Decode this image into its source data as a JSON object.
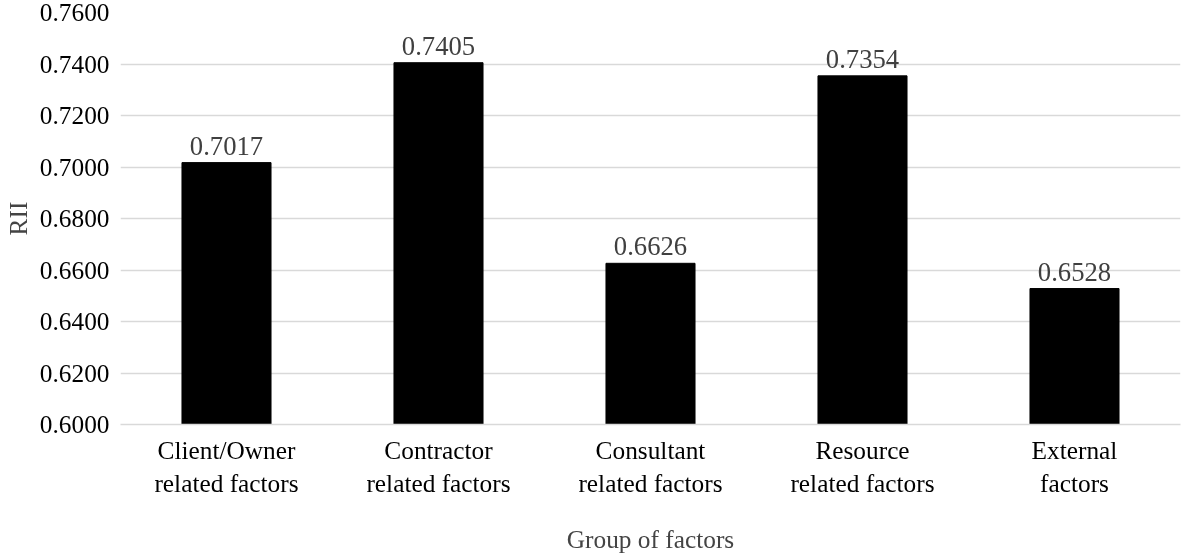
{
  "chart_data": {
    "type": "bar",
    "categories": [
      "Client/Owner\nrelated factors",
      "Contractor\nrelated factors",
      "Consultant\nrelated factors",
      "Resource\nrelated factors",
      "External\nfactors"
    ],
    "values": [
      0.7017,
      0.7405,
      0.6626,
      0.7354,
      0.6528
    ],
    "color": "#000000",
    "xlabel": "Group of factors",
    "ylabel": "RII",
    "ylim": [
      0.6,
      0.76
    ],
    "yticks": [
      {
        "value": 0.6,
        "label": "0.6000"
      },
      {
        "value": 0.62,
        "label": "0.6200"
      },
      {
        "value": 0.64,
        "label": "0.6400"
      },
      {
        "value": 0.66,
        "label": "0.6600"
      },
      {
        "value": 0.68,
        "label": "0.6800"
      },
      {
        "value": 0.7,
        "label": "0.7000"
      },
      {
        "value": 0.72,
        "label": "0.7200"
      },
      {
        "value": 0.74,
        "label": "0.7400"
      },
      {
        "value": 0.76,
        "label": "0.7600"
      }
    ],
    "grid": "y",
    "data_labels": true
  }
}
